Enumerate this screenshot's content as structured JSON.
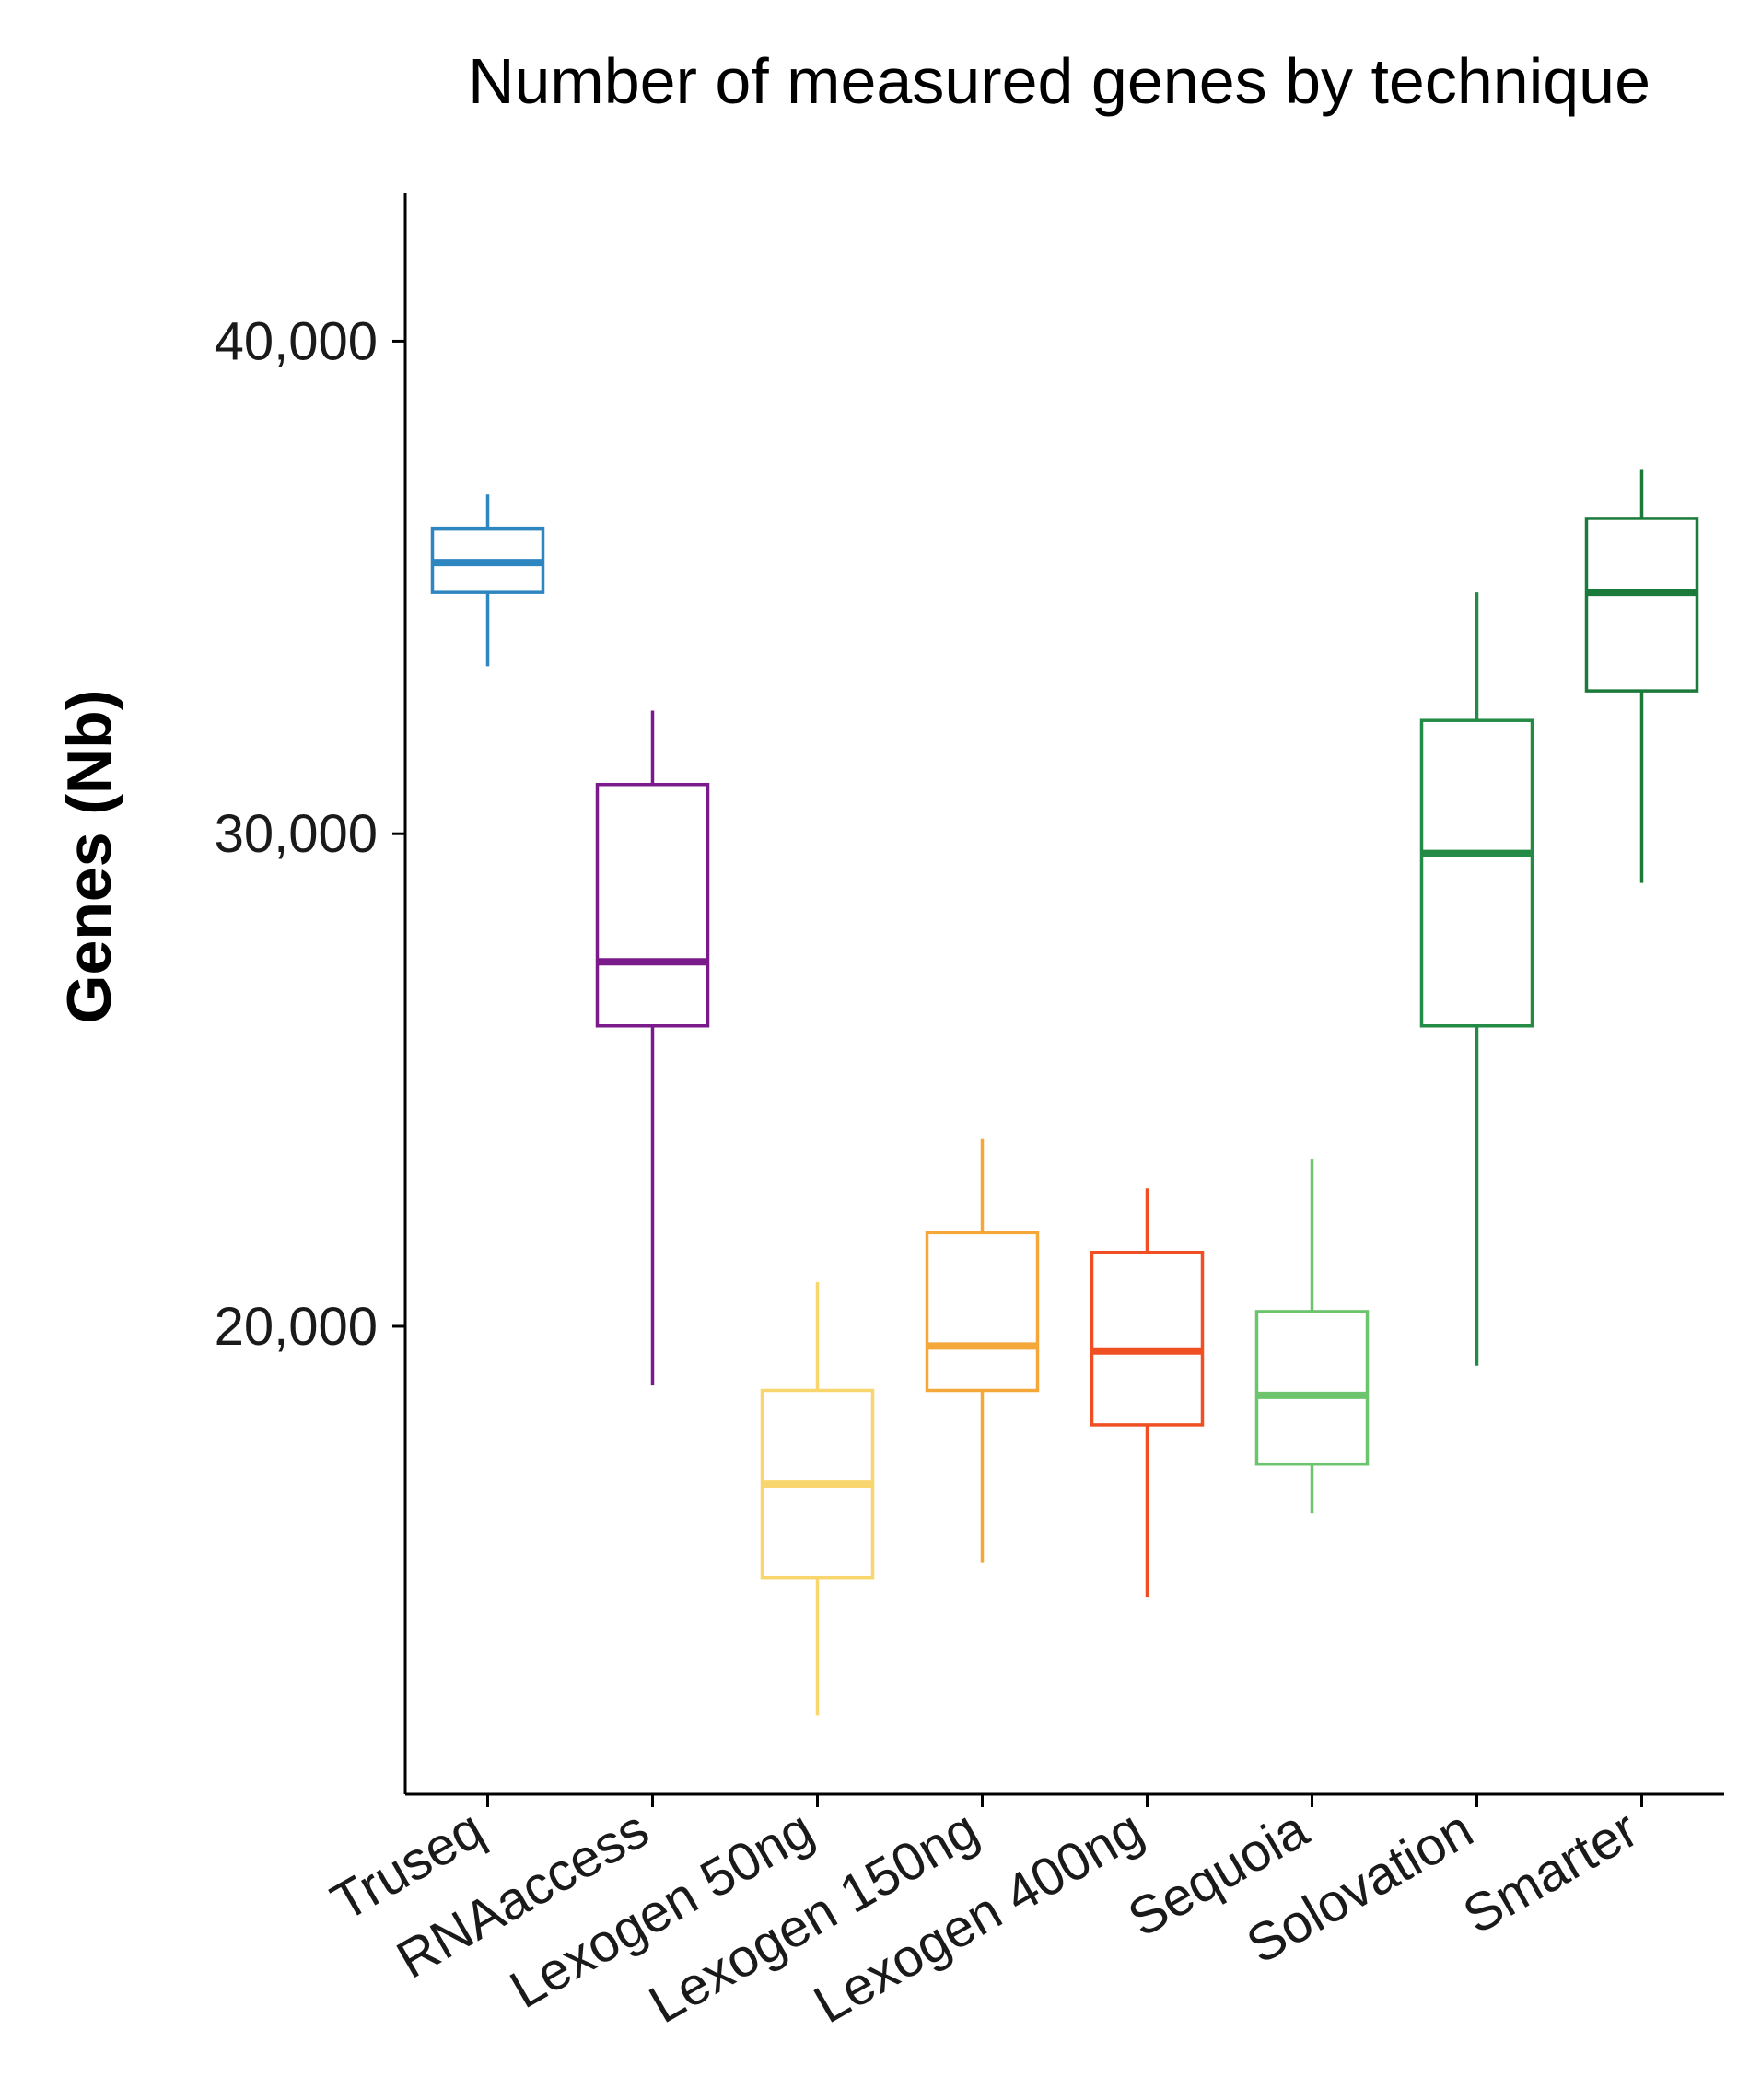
{
  "chart_data": {
    "type": "boxplot",
    "title": "Number of measured genes by technique",
    "xlabel": "",
    "ylabel": "Genes (Nb)",
    "ylim": [
      10500,
      43000
    ],
    "yticks": [
      {
        "value": 20000,
        "label": "20,000"
      },
      {
        "value": 30000,
        "label": "30,000"
      },
      {
        "value": 40000,
        "label": "40,000"
      }
    ],
    "grid": false,
    "legend": "none",
    "categories": [
      "Truseq",
      "RNAaccess",
      "Lexogen 50ng",
      "Lexogen 150ng",
      "Lexogen 400ng",
      "Sequoia",
      "Solovation",
      "Smarter"
    ],
    "series": [
      {
        "category": "Truseq",
        "color": "#2E86C1",
        "whisker_low": 33400,
        "q1": 34900,
        "median": 35500,
        "q3": 36200,
        "whisker_high": 36900
      },
      {
        "category": "RNAaccess",
        "color": "#7B1A8B",
        "whisker_low": 18800,
        "q1": 26100,
        "median": 27400,
        "q3": 31000,
        "whisker_high": 32500
      },
      {
        "category": "Lexogen 50ng",
        "color": "#F9D56E",
        "whisker_low": 12100,
        "q1": 14900,
        "median": 16800,
        "q3": 18700,
        "whisker_high": 20900
      },
      {
        "category": "Lexogen 150ng",
        "color": "#F5A83A",
        "whisker_low": 15200,
        "q1": 18700,
        "median": 19600,
        "q3": 21900,
        "whisker_high": 23800
      },
      {
        "category": "Lexogen 400ng",
        "color": "#F04E23",
        "whisker_low": 14500,
        "q1": 18000,
        "median": 19500,
        "q3": 21500,
        "whisker_high": 22800
      },
      {
        "category": "Sequoia",
        "color": "#6CC46C",
        "whisker_low": 16200,
        "q1": 17200,
        "median": 18600,
        "q3": 20300,
        "whisker_high": 23400
      },
      {
        "category": "Solovation",
        "color": "#238B45",
        "whisker_low": 19200,
        "q1": 26100,
        "median": 29600,
        "q3": 32300,
        "whisker_high": 34900
      },
      {
        "category": "Smarter",
        "color": "#1A7A3A",
        "whisker_low": 29000,
        "q1": 32900,
        "median": 34900,
        "q3": 36400,
        "whisker_high": 37400
      }
    ]
  }
}
